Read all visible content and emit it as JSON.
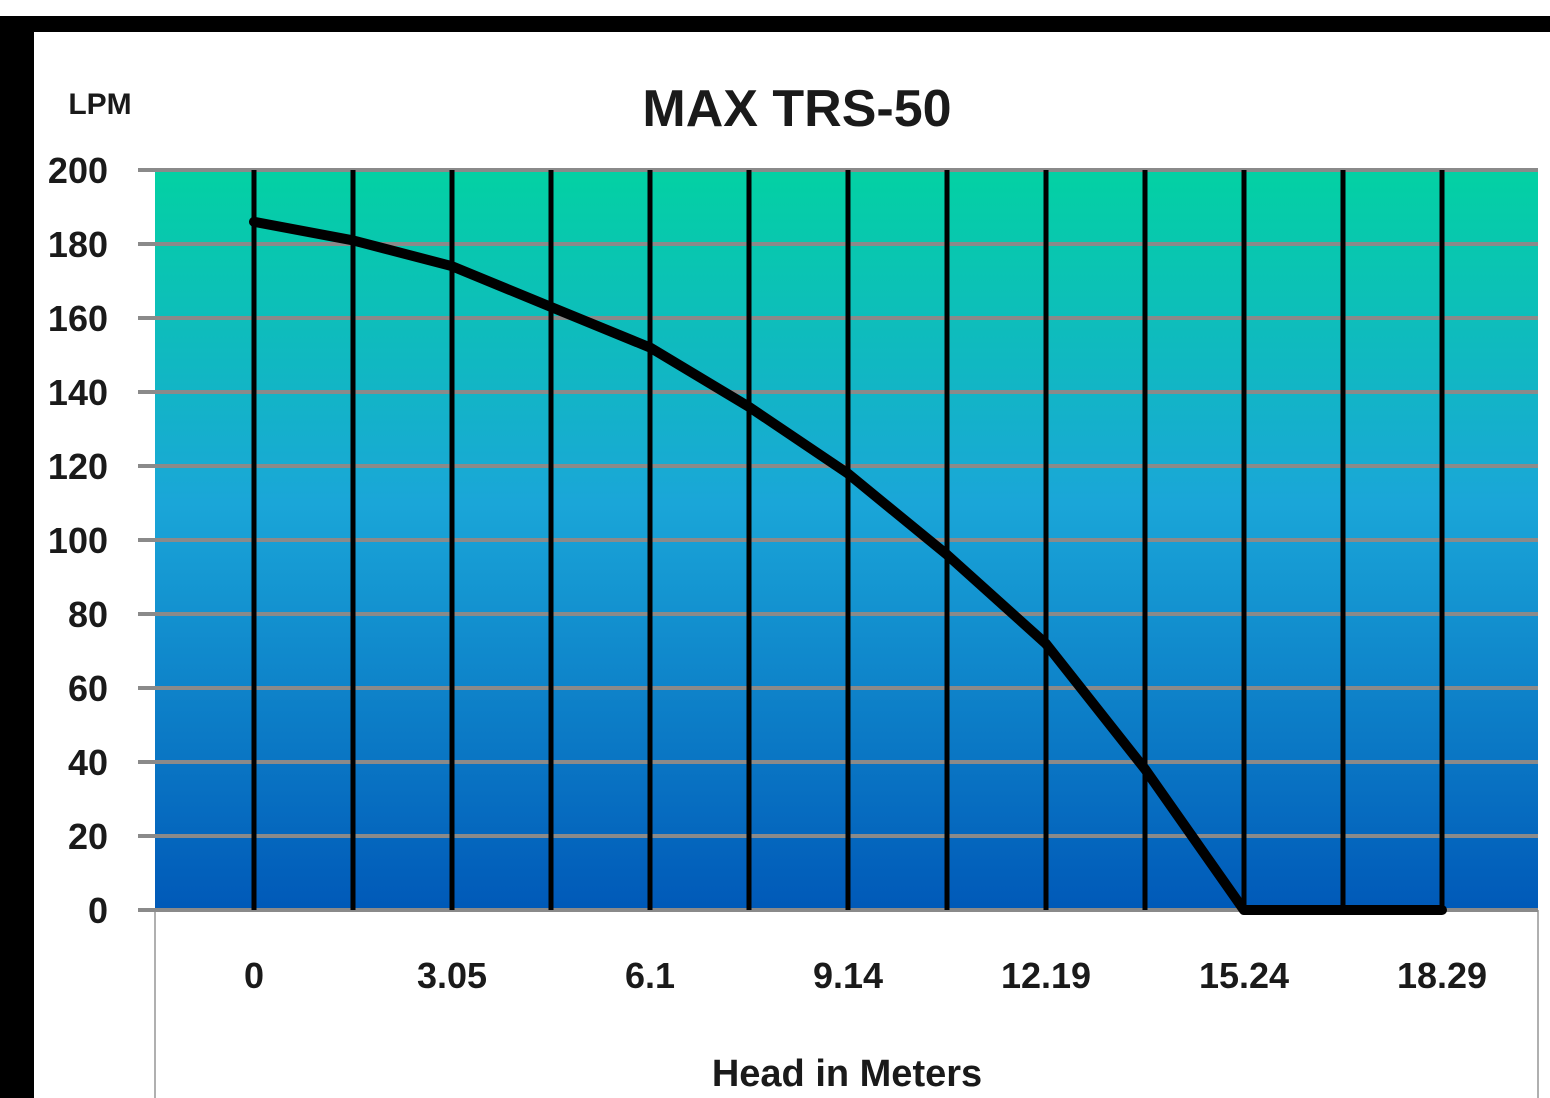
{
  "chart_data": {
    "type": "line",
    "title": "MAX TRS-50",
    "ylabel": "LPM",
    "xlabel": "Head in Meters",
    "y_ticks": [
      "0",
      "20",
      "40",
      "60",
      "80",
      "100",
      "120",
      "140",
      "160",
      "180",
      "200"
    ],
    "ylim": [
      0,
      200
    ],
    "x_ticks": [
      "0",
      "3.05",
      "6.1",
      "9.14",
      "12.19",
      "15.24",
      "18.29"
    ],
    "xlim": [
      0,
      18.29
    ],
    "grid": true,
    "legend": "none",
    "series": [
      {
        "x": [
          0,
          1.52,
          3.05,
          4.57,
          6.1,
          7.62,
          9.14,
          10.67,
          12.19,
          13.72,
          15.24,
          16.76,
          18.29
        ],
        "values": [
          186,
          181,
          174,
          163,
          152,
          136,
          118,
          96,
          72,
          38,
          0,
          0,
          0
        ]
      }
    ],
    "colors": {
      "line": "#000000",
      "gradient_top": "#03d1a3",
      "gradient_mid": "#1aa6d8",
      "gradient_bottom": "#0059b8",
      "horizontal_grid": "#8a8a8a",
      "vertical_grid": "#000000",
      "frame": "#000000"
    }
  }
}
